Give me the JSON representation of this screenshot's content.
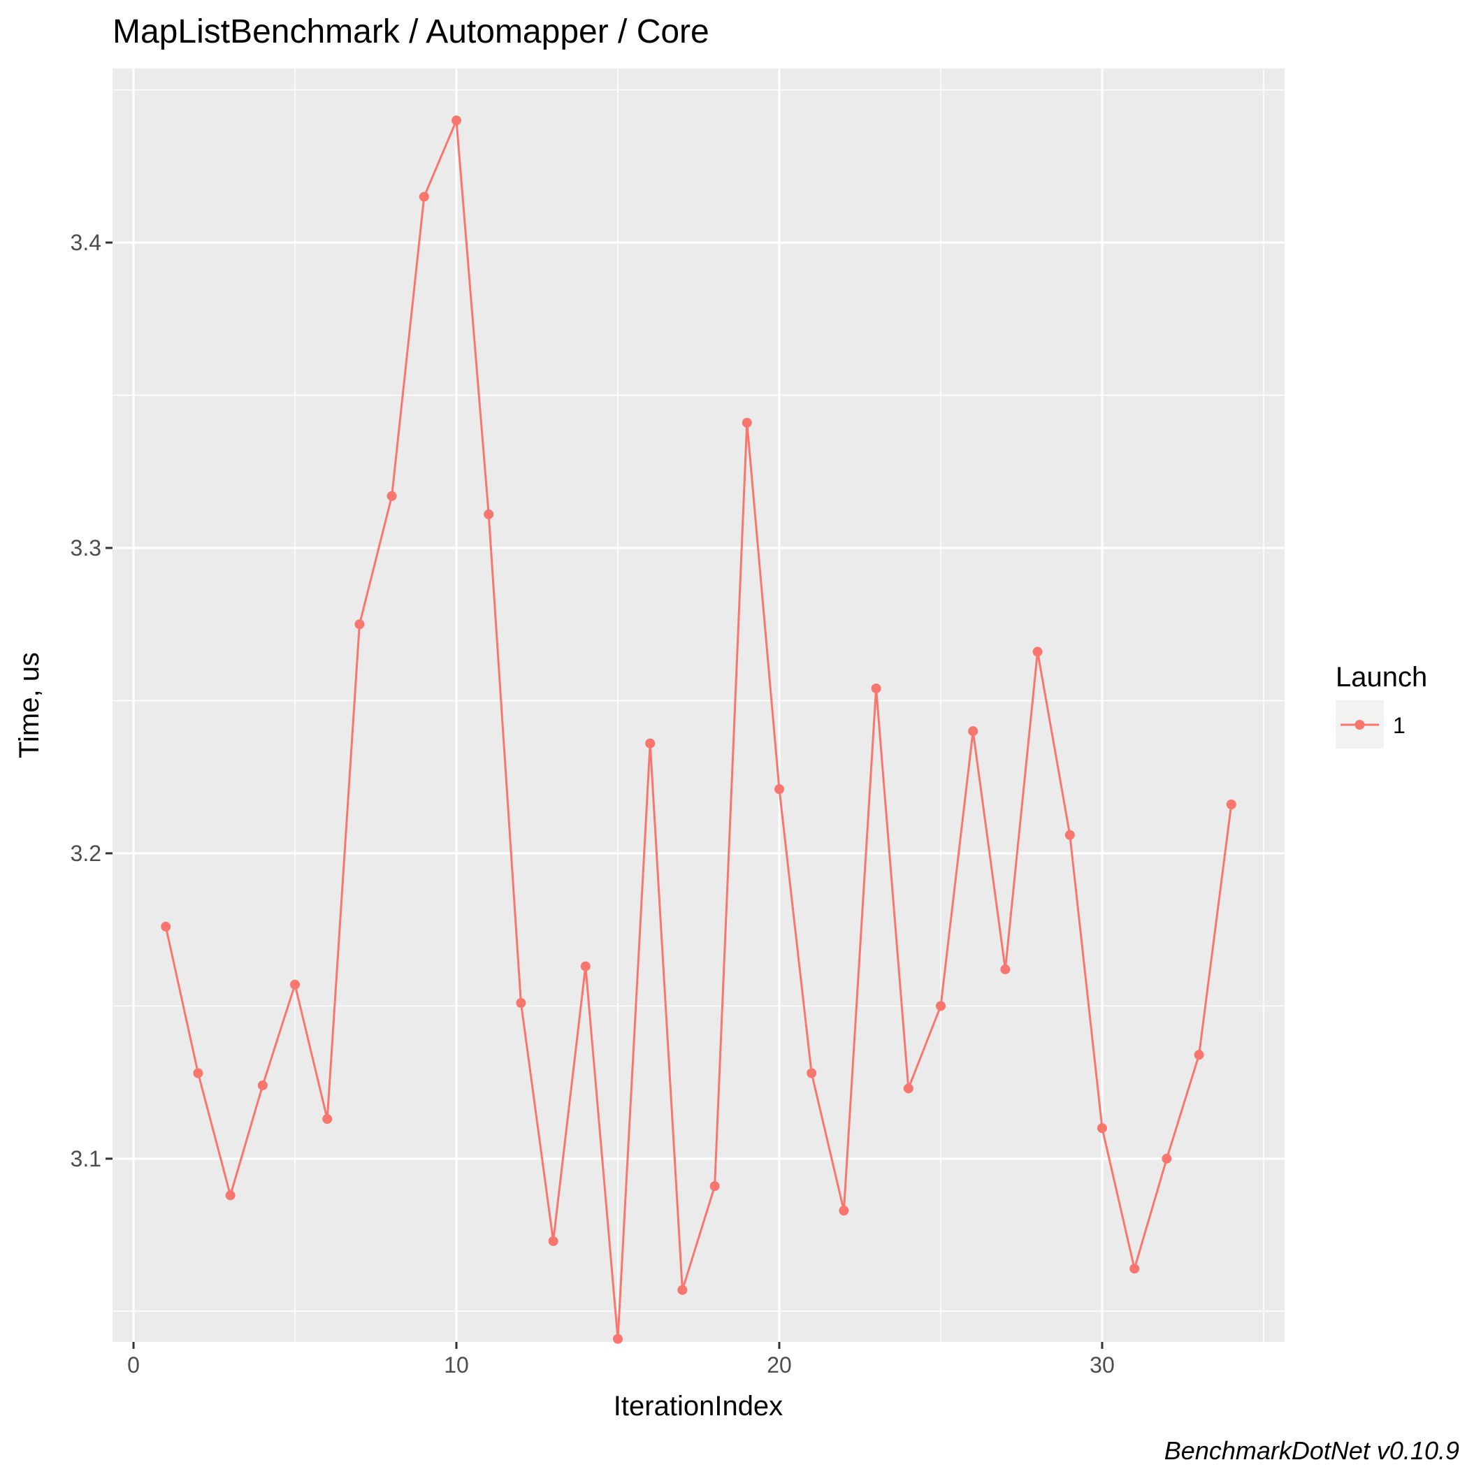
{
  "chart_data": {
    "type": "line",
    "title": "MapListBenchmark / Automapper / Core",
    "xlabel": "IterationIndex",
    "ylabel": "Time, us",
    "caption": "BenchmarkDotNet v0.10.9",
    "xlim": [
      -0.65,
      35.65
    ],
    "ylim": [
      3.04,
      3.457
    ],
    "x_ticks": [
      0,
      10,
      20,
      30
    ],
    "x_tick_labels": [
      "0",
      "10",
      "20",
      "30"
    ],
    "y_ticks": [
      3.1,
      3.2,
      3.3,
      3.4
    ],
    "y_tick_labels": [
      "3.1",
      "3.2",
      "3.3",
      "3.4"
    ],
    "grid": true,
    "legend": {
      "title": "Launch",
      "position": "right"
    },
    "series": [
      {
        "name": "1",
        "color": "#F8766D",
        "x": [
          1,
          2,
          3,
          4,
          5,
          6,
          7,
          8,
          9,
          10,
          11,
          12,
          13,
          14,
          15,
          16,
          17,
          18,
          19,
          20,
          21,
          22,
          23,
          24,
          25,
          26,
          27,
          28,
          29,
          30,
          31,
          32,
          33,
          34
        ],
        "y": [
          3.176,
          3.128,
          3.088,
          3.124,
          3.157,
          3.113,
          3.275,
          3.317,
          3.415,
          3.44,
          3.311,
          3.151,
          3.073,
          3.163,
          3.041,
          3.236,
          3.057,
          3.091,
          3.341,
          3.221,
          3.128,
          3.083,
          3.254,
          3.123,
          3.15,
          3.24,
          3.162,
          3.266,
          3.206,
          3.11,
          3.064,
          3.1,
          3.134,
          3.216
        ]
      }
    ]
  },
  "colors": {
    "panel_background": "#EBEBEB",
    "grid_major": "#FFFFFF",
    "series_1": "#F8766D",
    "legend_key_background": "#F2F2F2"
  }
}
